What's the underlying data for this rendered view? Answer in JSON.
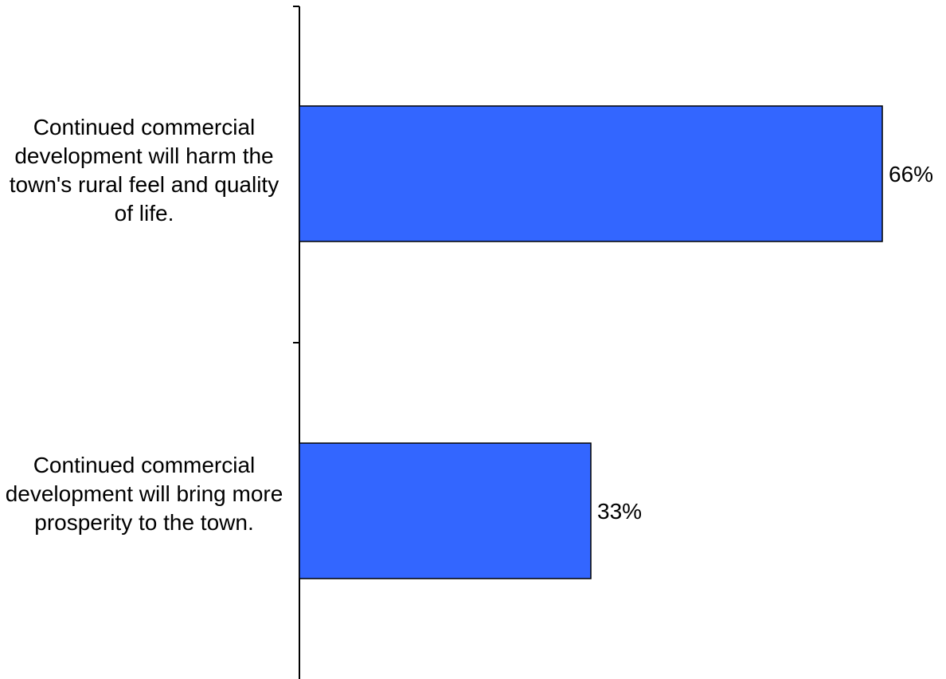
{
  "chart_data": {
    "type": "bar",
    "orientation": "horizontal",
    "categories": [
      "Continued commercial development will harm the town's rural feel and quality of life.",
      "Continued commercial development will bring more prosperity to the town."
    ],
    "values": [
      66,
      33
    ],
    "value_labels": [
      "66%",
      "33%"
    ],
    "xlim": [
      0,
      100
    ],
    "grid": false,
    "legend": "none",
    "bar_color": "#3366ff",
    "bar_edge_color": "#000000"
  }
}
